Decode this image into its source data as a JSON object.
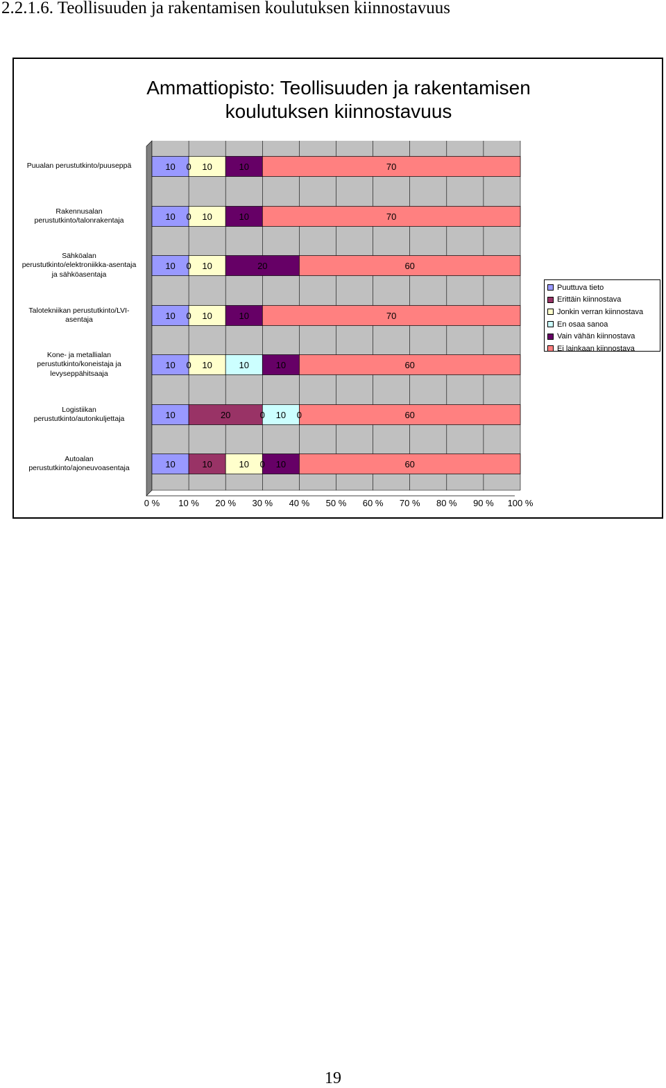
{
  "heading": "2.2.1.6. Teollisuuden ja rakentamisen koulutuksen kiinnostavuus",
  "page_number": "19",
  "chart_data": {
    "type": "bar",
    "orientation": "horizontal",
    "stacked": "percent",
    "title_lines": [
      "Ammattiopisto: Teollisuuden ja rakentamisen",
      "koulutuksen kiinnostavuus"
    ],
    "categories": [
      [
        "Puualan perustutkinto/puuseppä"
      ],
      [
        "Rakennusalan",
        "perustutkinto/talonrakentaja"
      ],
      [
        "Sähköalan",
        "perustutkinto/elektroniikka-asentaja",
        "ja sähköasentaja"
      ],
      [
        "Talotekniikan perustutkinto/LVI-",
        "asentaja"
      ],
      [
        "Kone- ja metallialan",
        "perustutkinto/koneistaja ja",
        "levyseppähitsaaja"
      ],
      [
        "Logistiikan",
        "perustutkinto/autonkuljettaja"
      ],
      [
        "Autoalan",
        "perustutkinto/ajoneuvoasentaja"
      ]
    ],
    "series": [
      {
        "name": "Puuttuva tieto",
        "color": "#9999FF",
        "values": [
          10,
          10,
          10,
          10,
          10,
          10,
          10
        ]
      },
      {
        "name": "Erittäin kiinnostava",
        "color": "#993366",
        "values": [
          0,
          0,
          0,
          0,
          0,
          20,
          10
        ]
      },
      {
        "name": "Jonkin verran kiinnostava",
        "color": "#FFFFCC",
        "values": [
          10,
          10,
          10,
          10,
          10,
          0,
          10
        ]
      },
      {
        "name": "En osaa sanoa",
        "color": "#CCFFFF",
        "values": [
          0,
          0,
          0,
          0,
          10,
          10,
          0
        ]
      },
      {
        "name": "Vain vähän kiinnostava",
        "color": "#660066",
        "values": [
          10,
          10,
          20,
          10,
          10,
          0,
          10
        ]
      },
      {
        "name": "Ei lainkaan kiinnostava",
        "color": "#FF8080",
        "values": [
          70,
          70,
          60,
          70,
          60,
          60,
          60
        ]
      }
    ],
    "data_labels": [
      [
        {
          "series": 0,
          "text": "10"
        },
        {
          "series": 1,
          "text": "0"
        },
        {
          "series": 2,
          "text": "10"
        },
        {
          "series": 4,
          "text": "10"
        },
        {
          "series": 5,
          "text": "70"
        }
      ],
      [
        {
          "series": 0,
          "text": "10"
        },
        {
          "series": 1,
          "text": "0"
        },
        {
          "series": 2,
          "text": "10"
        },
        {
          "series": 4,
          "text": "10"
        },
        {
          "series": 5,
          "text": "70"
        }
      ],
      [
        {
          "series": 0,
          "text": "10"
        },
        {
          "series": 1,
          "text": "0"
        },
        {
          "series": 2,
          "text": "10"
        },
        {
          "series": 4,
          "text": "20"
        },
        {
          "series": 5,
          "text": "60"
        }
      ],
      [
        {
          "series": 0,
          "text": "10"
        },
        {
          "series": 1,
          "text": "0"
        },
        {
          "series": 2,
          "text": "10"
        },
        {
          "series": 4,
          "text": "10"
        },
        {
          "series": 5,
          "text": "70"
        }
      ],
      [
        {
          "series": 0,
          "text": "10"
        },
        {
          "series": 1,
          "text": "0"
        },
        {
          "series": 2,
          "text": "10"
        },
        {
          "series": 3,
          "text": "10"
        },
        {
          "series": 4,
          "text": "10"
        },
        {
          "series": 5,
          "text": "60"
        }
      ],
      [
        {
          "series": 0,
          "text": "10"
        },
        {
          "series": 1,
          "text": "20"
        },
        {
          "series": 2,
          "text": "0"
        },
        {
          "series": 3,
          "text": "10"
        },
        {
          "series": 4,
          "text": "0"
        },
        {
          "series": 5,
          "text": "60"
        }
      ],
      [
        {
          "series": 0,
          "text": "10"
        },
        {
          "series": 1,
          "text": "10"
        },
        {
          "series": 2,
          "text": "10"
        },
        {
          "series": 3,
          "text": "0"
        },
        {
          "series": 4,
          "text": "10"
        },
        {
          "series": 5,
          "text": "60"
        }
      ]
    ],
    "x_ticks": [
      "0 %",
      "10 %",
      "20 %",
      "30 %",
      "40 %",
      "50 %",
      "60 %",
      "70 %",
      "80 %",
      "90 %",
      "100 %"
    ],
    "xlim": [
      0,
      100
    ],
    "grid": true,
    "plot_background": "#C0C0C0",
    "legend_position": "right"
  }
}
